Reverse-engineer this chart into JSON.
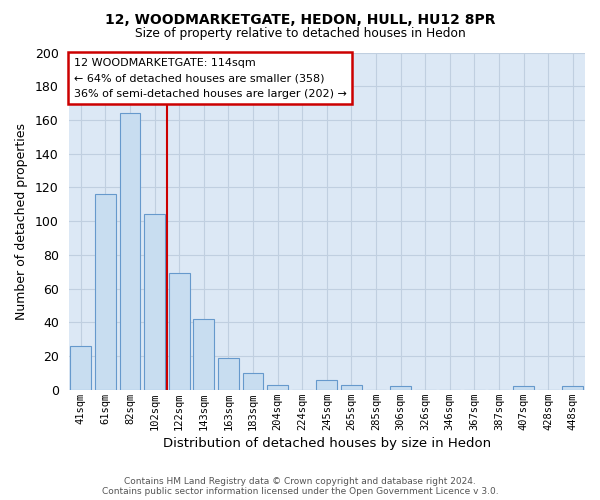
{
  "title1": "12, WOODMARKETGATE, HEDON, HULL, HU12 8PR",
  "title2": "Size of property relative to detached houses in Hedon",
  "xlabel": "Distribution of detached houses by size in Hedon",
  "ylabel": "Number of detached properties",
  "bar_labels": [
    "41sqm",
    "61sqm",
    "82sqm",
    "102sqm",
    "122sqm",
    "143sqm",
    "163sqm",
    "183sqm",
    "204sqm",
    "224sqm",
    "245sqm",
    "265sqm",
    "285sqm",
    "306sqm",
    "326sqm",
    "346sqm",
    "367sqm",
    "387sqm",
    "407sqm",
    "428sqm",
    "448sqm"
  ],
  "bar_values": [
    26,
    116,
    164,
    104,
    69,
    42,
    19,
    10,
    3,
    0,
    6,
    3,
    0,
    2,
    0,
    0,
    0,
    0,
    2,
    0,
    2
  ],
  "bar_color": "#c8ddf0",
  "bar_edge_color": "#6699cc",
  "ylim": [
    0,
    200
  ],
  "yticks": [
    0,
    20,
    40,
    60,
    80,
    100,
    120,
    140,
    160,
    180,
    200
  ],
  "annotation_box_text": "12 WOODMARKETGATE: 114sqm\n← 64% of detached houses are smaller (358)\n36% of semi-detached houses are larger (202) →",
  "annotation_box_color": "#ffffff",
  "annotation_box_edge_color": "#cc0000",
  "red_line_x": 3.5,
  "footer1": "Contains HM Land Registry data © Crown copyright and database right 2024.",
  "footer2": "Contains public sector information licensed under the Open Government Licence v 3.0.",
  "grid_color": "#c0cfe0",
  "plot_bg_color": "#dce8f5",
  "fig_bg_color": "#ffffff"
}
